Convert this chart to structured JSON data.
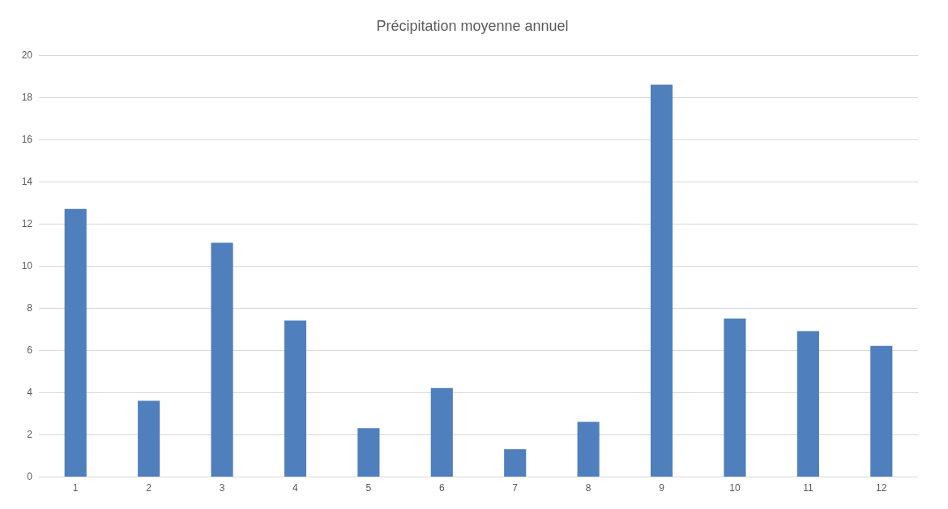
{
  "chart_data": {
    "type": "bar",
    "title": "Précipitation moyenne annuel",
    "categories": [
      "1",
      "2",
      "3",
      "4",
      "5",
      "6",
      "7",
      "8",
      "9",
      "10",
      "11",
      "12"
    ],
    "values": [
      12.7,
      3.6,
      11.1,
      7.4,
      2.3,
      4.2,
      1.3,
      2.6,
      18.6,
      7.5,
      6.9,
      6.2
    ],
    "color": "#4f7fbc",
    "ylim": [
      0,
      20
    ],
    "yticks": [
      0,
      2,
      4,
      6,
      8,
      10,
      12,
      14,
      16,
      18,
      20
    ],
    "grid": "y"
  }
}
